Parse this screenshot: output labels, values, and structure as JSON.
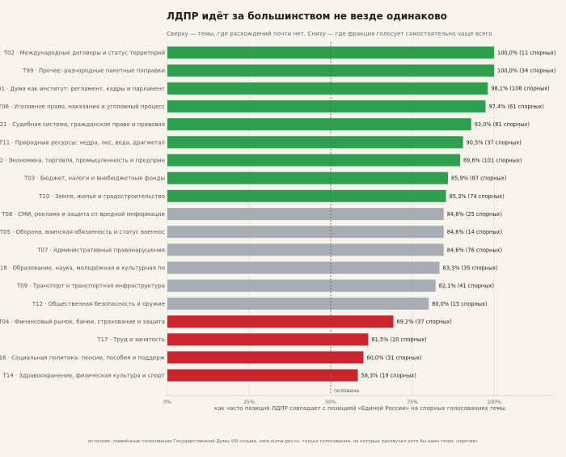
{
  "header": {
    "title": "ЛДПР идёт за большинством не везде одинаково",
    "subtitle": "Сверху — темы, где расхождений почти нет. Снизу — где фракция голосует самостоятельно чаще всего"
  },
  "footnote": "источник: поимённые голосования Государственной Думы VIII созыва, vote.duma.gov.ru; только голосования, на которых прозвучал хотя бы один голос «против»",
  "colors": {
    "high": "#2e9e4f",
    "mid": "#a8adb3",
    "low": "#c9252c",
    "background": "#f7f4ee"
  },
  "chart_data": {
    "type": "bar",
    "orientation": "horizontal",
    "xlabel": "как часто позиция ЛДПР совпадает с позицией «Единой России» на спорных голосованиях темы",
    "xlim": [
      0,
      100
    ],
    "xticks": [
      "0%",
      "25%",
      "50%",
      "75%",
      "100%"
    ],
    "reference_line": {
      "value": 50,
      "label": "половина"
    },
    "grid": true,
    "categories": [
      "T02 · Международные договоры и статус территорий",
      "T99 · Прочее: разнородные пакетные поправки",
      "T01 · Дума как институт: регламент, кадры и парламент",
      "T06 · Уголовное право, наказания и уголовный процесс",
      "T21 · Судебная система, гражданское право и правовая",
      "T11 · Природные ресурсы: недра, лес, вода, драгметал",
      "T22 · Экономика, торговля, промышленность и предприн",
      "T03 · Бюджет, налоги и внебюджетные фонды",
      "T10 · Земля, жильё и градостроительство",
      "T08 · СМИ, реклама и защита от вредной информации",
      "T05 · Оборона, воинская обязанность и статус военнос",
      "T07 · Административные правонарушения",
      "T18 · Образование, наука, молодёжная и культурная по",
      "T09 · Транспорт и транспортная инфраструктура",
      "T12 · Общественная безопасность и оружие",
      "T04 · Финансовый рынок, банки, страхование и защита",
      "T17 · Труд и занятость",
      "T16 · Социальная политика: пенсии, пособия и поддерж",
      "T14 · Здравоохранение, физическая культура и спорт"
    ],
    "values": [
      100.0,
      100.0,
      98.1,
      97.4,
      93.0,
      90.5,
      89.6,
      85.9,
      85.3,
      84.6,
      84.6,
      84.6,
      83.3,
      82.1,
      80.0,
      69.2,
      61.5,
      60.0,
      58.3
    ],
    "group": [
      "high",
      "high",
      "high",
      "high",
      "high",
      "high",
      "high",
      "high",
      "high",
      "mid",
      "mid",
      "mid",
      "mid",
      "mid",
      "mid",
      "low",
      "low",
      "low",
      "low"
    ],
    "value_labels": [
      "100,0%  (11 спорных)",
      "100,0%  (34 спорных)",
      "98,1%  (108 спорных)",
      "97,4%  (61 спорных)",
      "93,0%  (61 спорных)",
      "90,5%  (37 спорных)",
      "89,6%  (101 спорных)",
      "85,9%  (87 спорных)",
      "85,3%  (74 спорных)",
      "84,6%  (25 спорных)",
      "84,6%  (14 спорных)",
      "84,6%  (76 спорных)",
      "83,3%  (35 спорных)",
      "82,1%  (41 спорных)",
      "80,0%  (15 спорных)",
      "69,2%  (37 спорных)",
      "61,5%  (20 спорных)",
      "60,0%  (31 спорных)",
      "58,3%  (19 спорных)"
    ]
  }
}
